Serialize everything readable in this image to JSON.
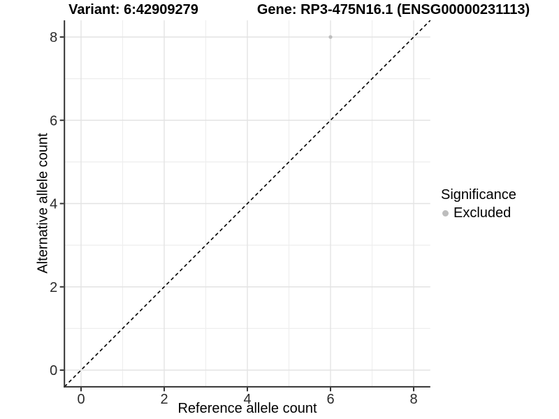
{
  "window": {
    "background": "#ffffff"
  },
  "chart_data": {
    "type": "scatter",
    "titles": {
      "variant": "Variant: 6:42909279",
      "gene": "Gene: RP3-475N16.1 (ENSG00000231113)"
    },
    "xlabel": "Reference allele count",
    "ylabel": "Alternative allele count",
    "xlim": [
      -0.4,
      8.4
    ],
    "ylim": [
      -0.4,
      8.4
    ],
    "xticks": [
      0,
      2,
      4,
      6,
      8
    ],
    "yticks": [
      0,
      2,
      4,
      6,
      8
    ],
    "xminor": [
      1,
      3,
      5,
      7
    ],
    "yminor": [
      1,
      3,
      5,
      7
    ],
    "grid": "major and minor gridlines, white panel background",
    "reference_line": {
      "kind": "identity y=x",
      "style": "dashed",
      "color": "#000000"
    },
    "series": [
      {
        "name": "Excluded",
        "color": "#bdbdbd",
        "points": [
          {
            "x": 6,
            "y": 8
          }
        ]
      }
    ],
    "legend": {
      "position": "right",
      "title": "Significance",
      "items": [
        {
          "label": "Excluded",
          "marker_color": "#bdbdbd"
        }
      ]
    },
    "style": {
      "axis_line_color": "#333333",
      "tick_color": "#333333",
      "tick_label_color": "#2b2b2b",
      "grid_major_color": "#e3e3e3",
      "grid_minor_color": "#eeeeee",
      "point_radius": 2.6,
      "tick_label_font_px": 20
    }
  }
}
